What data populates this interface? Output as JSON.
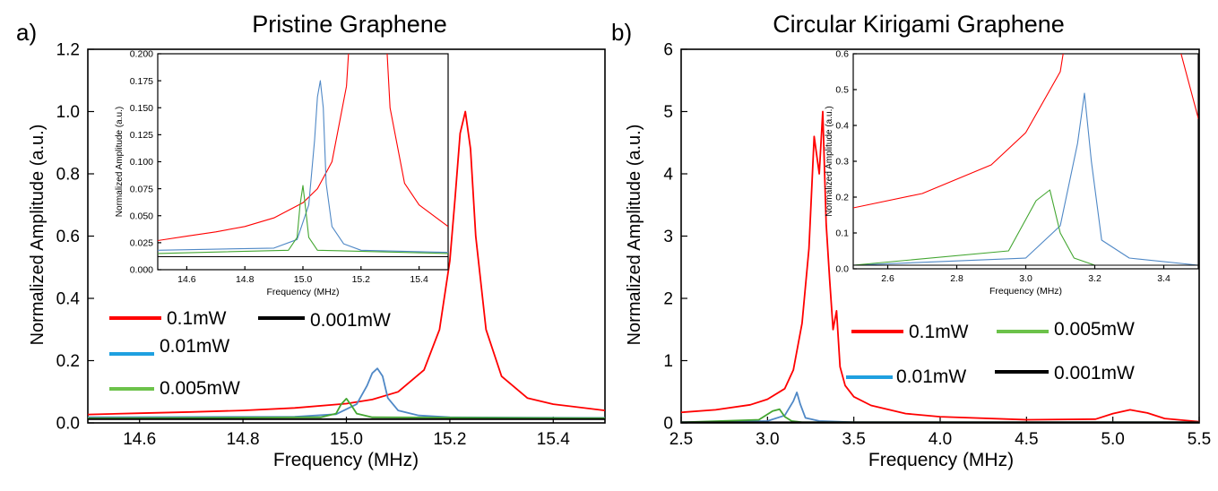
{
  "chart_data": [
    {
      "type": "line",
      "panel_label": "a)",
      "title": "Pristine Graphene",
      "xlabel": "Frequency (MHz)",
      "ylabel": "Normalized Amplitude (a.u.)",
      "xlim": [
        14.5,
        15.5
      ],
      "ylim": [
        0,
        1.2
      ],
      "xticks": [
        "14.6",
        "14.8",
        "15.0",
        "15.2",
        "15.4"
      ],
      "yticks": [
        "0.0",
        "0.2",
        "0.4",
        "0.6",
        "0.8",
        "1.0",
        "1.2"
      ],
      "legend": [
        "0.1mW",
        "0.001mW",
        "0.01mW",
        "0.005mW"
      ],
      "series": [
        {
          "name": "0.1mW",
          "color": "#ff0000",
          "x": [
            14.5,
            14.6,
            14.7,
            14.8,
            14.9,
            15.0,
            15.05,
            15.1,
            15.15,
            15.18,
            15.2,
            15.21,
            15.22,
            15.23,
            15.24,
            15.25,
            15.27,
            15.3,
            15.35,
            15.4,
            15.5
          ],
          "y": [
            0.027,
            0.031,
            0.035,
            0.04,
            0.048,
            0.062,
            0.075,
            0.1,
            0.17,
            0.3,
            0.52,
            0.72,
            0.93,
            1.0,
            0.88,
            0.6,
            0.3,
            0.15,
            0.08,
            0.06,
            0.04
          ]
        },
        {
          "name": "0.01mW",
          "color": "#4f88c6",
          "x": [
            14.5,
            14.9,
            14.98,
            15.02,
            15.04,
            15.05,
            15.06,
            15.07,
            15.08,
            15.1,
            15.14,
            15.2,
            15.5
          ],
          "y": [
            0.018,
            0.02,
            0.028,
            0.06,
            0.12,
            0.16,
            0.175,
            0.15,
            0.08,
            0.04,
            0.024,
            0.018,
            0.016
          ]
        },
        {
          "name": "0.005mW",
          "color": "#43a631",
          "x": [
            14.5,
            14.95,
            14.98,
            14.99,
            15.0,
            15.01,
            15.02,
            15.05,
            15.5
          ],
          "y": [
            0.015,
            0.018,
            0.03,
            0.06,
            0.078,
            0.055,
            0.03,
            0.018,
            0.015
          ]
        },
        {
          "name": "0.001mW",
          "color": "#000000",
          "x": [
            14.5,
            15.0,
            15.5
          ],
          "y": [
            0.012,
            0.012,
            0.012
          ]
        }
      ],
      "inset": {
        "xlabel": "Frequency (MHz)",
        "ylabel": "Normalized Amplitude (a.u.)",
        "xlim": [
          14.5,
          15.5
        ],
        "ylim": [
          0,
          0.2
        ],
        "xticks": [
          "14.6",
          "14.8",
          "15.0",
          "15.2",
          "15.4"
        ],
        "yticks": [
          "0.000",
          "0.025",
          "0.050",
          "0.075",
          "0.100",
          "0.125",
          "0.150",
          "0.175",
          "0.200"
        ]
      }
    },
    {
      "type": "line",
      "panel_label": "b)",
      "title": "Circular Kirigami Graphene",
      "xlabel": "Frequency (MHz)",
      "ylabel": "Normalized Amplitude (a.u.)",
      "xlim": [
        2.5,
        5.5
      ],
      "ylim": [
        0,
        6
      ],
      "xticks": [
        "2.5",
        "3.0",
        "3.5",
        "4.0",
        "4.5",
        "5.0",
        "5.5"
      ],
      "yticks": [
        "0",
        "1",
        "2",
        "3",
        "4",
        "5",
        "6"
      ],
      "legend": [
        "0.1mW",
        "0.005mW",
        "0.01mW",
        "0.001mW"
      ],
      "series": [
        {
          "name": "0.1mW",
          "color": "#ff0000",
          "x": [
            2.5,
            2.7,
            2.9,
            3.0,
            3.1,
            3.15,
            3.2,
            3.24,
            3.27,
            3.3,
            3.32,
            3.34,
            3.36,
            3.38,
            3.4,
            3.42,
            3.45,
            3.5,
            3.6,
            3.8,
            4.0,
            4.5,
            4.9,
            5.0,
            5.1,
            5.2,
            5.3,
            5.5
          ],
          "y": [
            0.17,
            0.21,
            0.29,
            0.38,
            0.55,
            0.85,
            1.6,
            2.8,
            4.6,
            4.0,
            5.0,
            3.2,
            2.3,
            1.5,
            1.8,
            0.9,
            0.6,
            0.42,
            0.28,
            0.15,
            0.1,
            0.05,
            0.06,
            0.15,
            0.21,
            0.16,
            0.07,
            0.02
          ]
        },
        {
          "name": "0.01mW",
          "color": "#4f88c6",
          "x": [
            2.5,
            3.0,
            3.1,
            3.15,
            3.17,
            3.19,
            3.22,
            3.3,
            3.5,
            5.5
          ],
          "y": [
            0.01,
            0.03,
            0.12,
            0.35,
            0.49,
            0.3,
            0.08,
            0.03,
            0.01,
            0.01
          ]
        },
        {
          "name": "0.005mW",
          "color": "#43a631",
          "x": [
            2.5,
            2.95,
            3.03,
            3.07,
            3.1,
            3.14,
            3.2,
            5.5
          ],
          "y": [
            0.01,
            0.05,
            0.19,
            0.22,
            0.1,
            0.03,
            0.01,
            0.01
          ]
        },
        {
          "name": "0.001mW",
          "color": "#000000",
          "x": [
            2.5,
            5.5
          ],
          "y": [
            0.01,
            0.01
          ]
        }
      ],
      "inset": {
        "xlabel": "Frequency (MHz)",
        "ylabel": "Normalized Amplitude (a.u.)",
        "xlim": [
          2.5,
          3.5
        ],
        "ylim": [
          0,
          0.6
        ],
        "xticks": [
          "2.6",
          "2.8",
          "3.0",
          "3.2",
          "3.4"
        ],
        "yticks": [
          "0.0",
          "0.1",
          "0.2",
          "0.3",
          "0.4",
          "0.5",
          "0.6"
        ]
      }
    }
  ]
}
